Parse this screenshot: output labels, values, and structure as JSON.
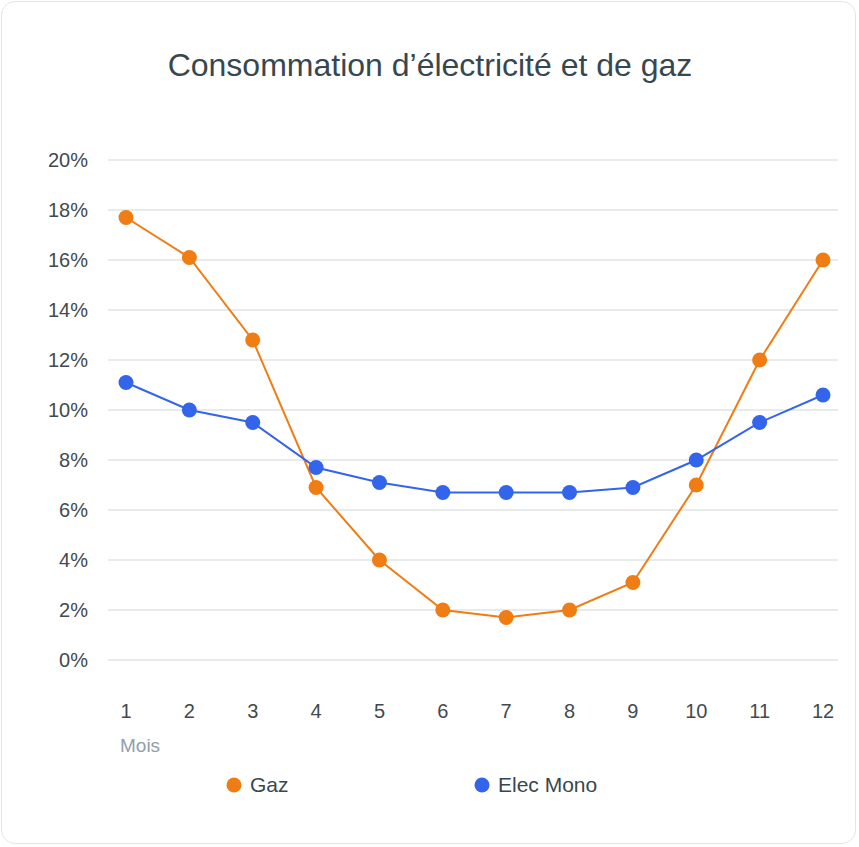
{
  "chart_data": {
    "type": "line",
    "title": "Consommation d’électricité et de gaz",
    "x_label": "Mois",
    "categories": [
      "1",
      "2",
      "3",
      "4",
      "5",
      "6",
      "7",
      "8",
      "9",
      "10",
      "11",
      "12"
    ],
    "series": [
      {
        "name": "Gaz",
        "color": "#ef7d14",
        "marker": "circle",
        "line_style": "solid",
        "values": [
          17.7,
          16.1,
          12.8,
          6.9,
          4.0,
          2.0,
          1.7,
          2.0,
          3.1,
          7.0,
          12.0,
          16.0
        ]
      },
      {
        "name": "Elec Mono",
        "color": "#3264ec",
        "marker": "circle",
        "line_style": "solid",
        "values": [
          11.1,
          10.0,
          9.5,
          7.7,
          7.1,
          6.7,
          6.7,
          6.7,
          6.9,
          8.0,
          9.5,
          10.6
        ]
      }
    ],
    "ylim": [
      0,
      20
    ],
    "yticks": [
      {
        "value": 0,
        "label": "0%"
      },
      {
        "value": 2,
        "label": "2%"
      },
      {
        "value": 4,
        "label": "4%"
      },
      {
        "value": 6,
        "label": "6%"
      },
      {
        "value": 8,
        "label": "8%"
      },
      {
        "value": 10,
        "label": "10%"
      },
      {
        "value": 12,
        "label": "12%"
      },
      {
        "value": 14,
        "label": "14%"
      },
      {
        "value": 16,
        "label": "16%"
      },
      {
        "value": 18,
        "label": "18%"
      },
      {
        "value": 20,
        "label": "20%"
      }
    ],
    "grid": true,
    "legend": "bottom"
  }
}
